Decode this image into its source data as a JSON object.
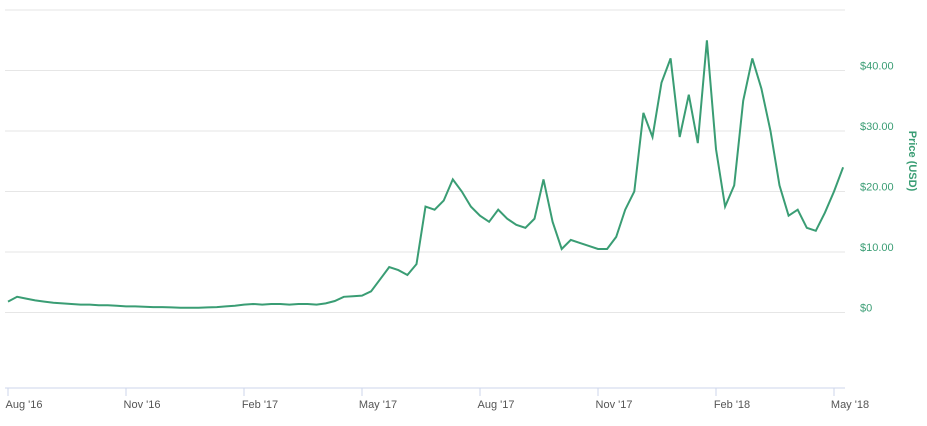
{
  "chart_data": {
    "type": "line",
    "y_axis_title": "Price (USD)",
    "categories": [
      "Aug '16",
      null,
      null,
      null,
      null,
      null,
      null,
      null,
      null,
      null,
      null,
      null,
      null,
      "Nov '16",
      null,
      null,
      null,
      null,
      null,
      null,
      null,
      null,
      null,
      null,
      null,
      null,
      "Feb '17",
      null,
      null,
      null,
      null,
      null,
      null,
      null,
      null,
      null,
      null,
      null,
      null,
      "May '17",
      null,
      null,
      null,
      null,
      null,
      null,
      null,
      null,
      null,
      null,
      null,
      null,
      "Aug '17",
      null,
      null,
      null,
      null,
      null,
      null,
      null,
      null,
      null,
      null,
      null,
      null,
      "Nov '17",
      null,
      null,
      null,
      null,
      null,
      null,
      null,
      null,
      null,
      null,
      null,
      null,
      "Feb '18",
      null,
      null,
      null,
      null,
      null,
      null,
      null,
      null,
      null,
      null,
      null,
      null,
      "May '18",
      null
    ],
    "values": [
      1.8,
      2.6,
      2.3,
      2.0,
      1.8,
      1.6,
      1.5,
      1.4,
      1.3,
      1.3,
      1.2,
      1.2,
      1.1,
      1.0,
      1.0,
      0.95,
      0.9,
      0.9,
      0.85,
      0.8,
      0.8,
      0.8,
      0.85,
      0.9,
      1.0,
      1.1,
      1.3,
      1.4,
      1.3,
      1.4,
      1.4,
      1.3,
      1.4,
      1.4,
      1.3,
      1.5,
      1.9,
      2.6,
      2.7,
      2.8,
      3.5,
      5.5,
      7.5,
      7.0,
      6.2,
      8.0,
      17.5,
      17.0,
      18.5,
      22.0,
      20.0,
      17.5,
      16.0,
      15.0,
      17.0,
      15.5,
      14.5,
      14.0,
      15.5,
      22.0,
      15.0,
      10.5,
      12.0,
      11.5,
      11.0,
      10.5,
      10.5,
      12.5,
      17.0,
      20.0,
      33.0,
      29.0,
      38.0,
      42.0,
      29.0,
      36.0,
      28.0,
      45.0,
      27.0,
      17.5,
      21.0,
      35.0,
      42.0,
      37.0,
      30.0,
      21.0,
      16.0,
      17.0,
      14.0,
      13.5,
      16.5,
      20.0,
      24.0
    ],
    "color": "#3a9d74",
    "axis_color": "#3a9d74",
    "ylim": [
      -10,
      50
    ],
    "yticks": [
      {
        "value": 0,
        "label": "$0"
      },
      {
        "value": 10,
        "label": "$10.00"
      },
      {
        "value": 20,
        "label": "$20.00"
      },
      {
        "value": 30,
        "label": "$30.00"
      },
      {
        "value": 40,
        "label": "$40.00"
      }
    ],
    "grid": true
  }
}
